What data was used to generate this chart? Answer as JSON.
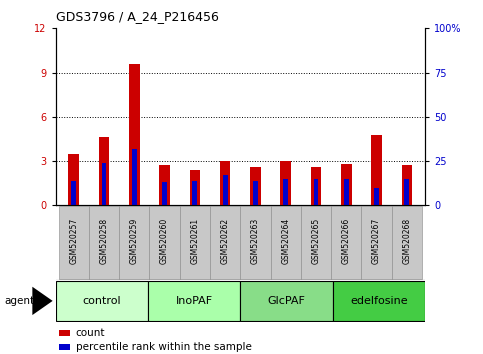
{
  "title": "GDS3796 / A_24_P216456",
  "samples": [
    "GSM520257",
    "GSM520258",
    "GSM520259",
    "GSM520260",
    "GSM520261",
    "GSM520262",
    "GSM520263",
    "GSM520264",
    "GSM520265",
    "GSM520266",
    "GSM520267",
    "GSM520268"
  ],
  "count_values": [
    3.5,
    4.6,
    9.6,
    2.7,
    2.4,
    3.0,
    2.6,
    3.0,
    2.6,
    2.8,
    4.8,
    2.7
  ],
  "percentile_values": [
    14,
    24,
    32,
    13,
    14,
    17,
    14,
    15,
    15,
    15,
    10,
    15
  ],
  "count_color": "#cc0000",
  "percentile_color": "#0000cc",
  "ylim_left": [
    0,
    12
  ],
  "ylim_right": [
    0,
    100
  ],
  "yticks_left": [
    0,
    3,
    6,
    9,
    12
  ],
  "yticks_right": [
    0,
    25,
    50,
    75,
    100
  ],
  "groups": [
    {
      "label": "control",
      "start": 0,
      "end": 3,
      "color": "#ccffcc"
    },
    {
      "label": "InoPAF",
      "start": 3,
      "end": 6,
      "color": "#aaffaa"
    },
    {
      "label": "GlcPAF",
      "start": 6,
      "end": 9,
      "color": "#88dd88"
    },
    {
      "label": "edelfosine",
      "start": 9,
      "end": 12,
      "color": "#44cc44"
    }
  ],
  "bar_width": 0.35,
  "tick_label_bg": "#c8c8c8",
  "agent_label": "agent",
  "legend_count": "count",
  "legend_percentile": "percentile rank within the sample"
}
